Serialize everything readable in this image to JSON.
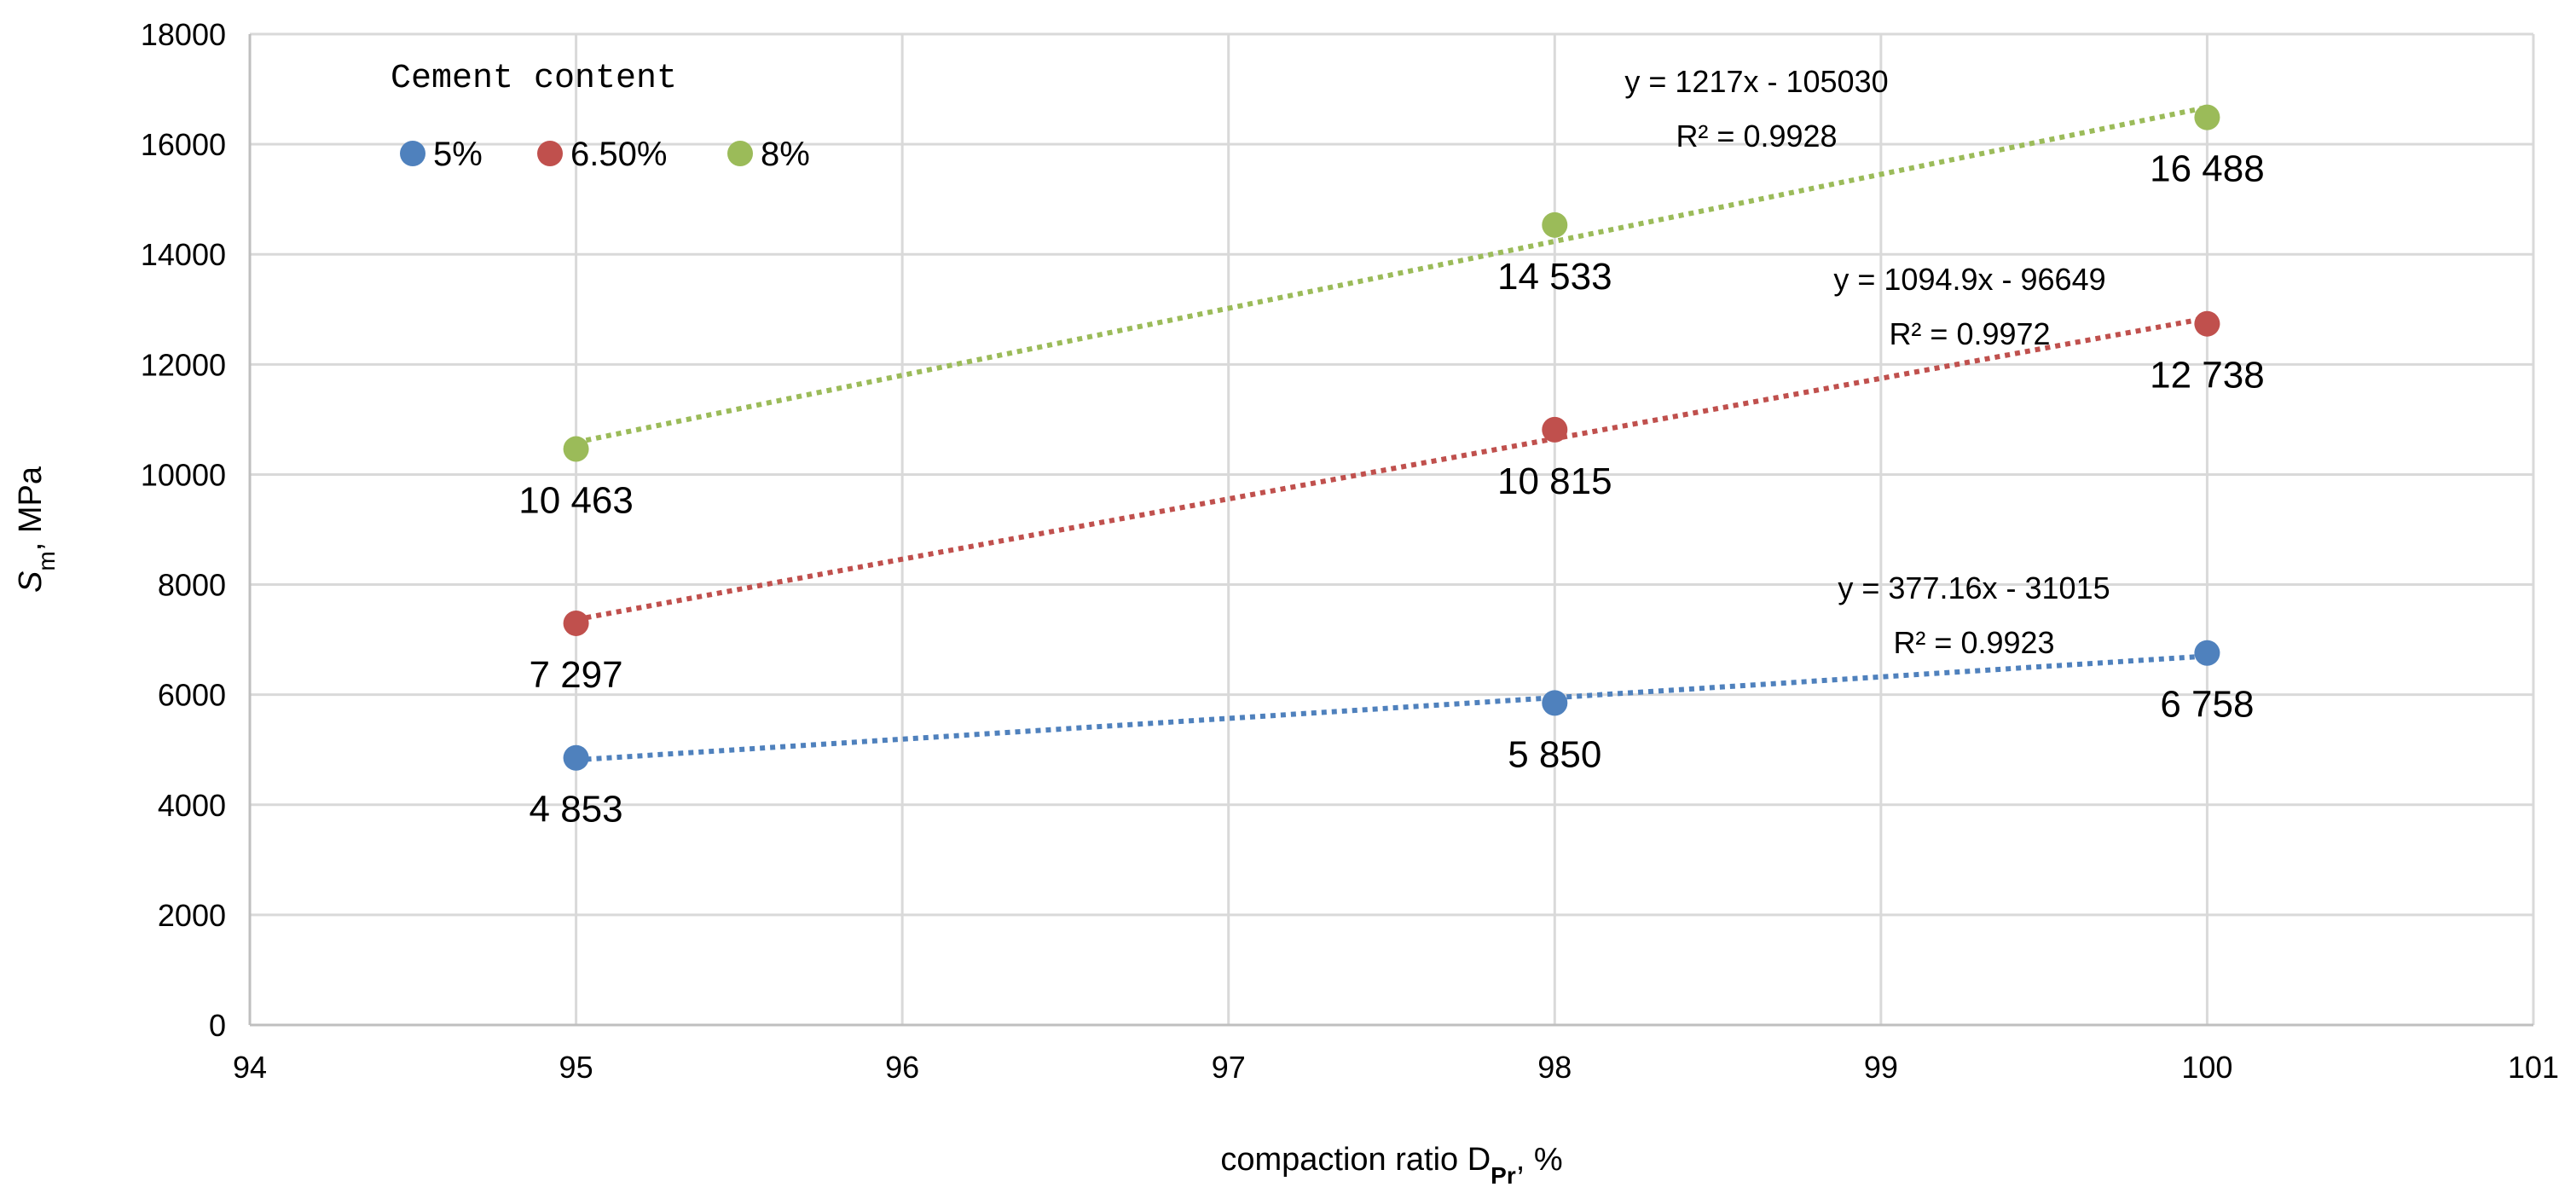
{
  "chart_data": {
    "type": "scatter",
    "xlabel": "compaction ratio D",
    "xlabel_sub": "Pr",
    "xlabel_suffix": ", %",
    "ylabel": "S",
    "ylabel_sub": "m",
    "ylabel_suffix": ", MPa",
    "xlim": [
      94,
      101
    ],
    "ylim": [
      0,
      18000
    ],
    "xticks": [
      94,
      95,
      96,
      97,
      98,
      99,
      100,
      101
    ],
    "yticks": [
      0,
      2000,
      4000,
      6000,
      8000,
      10000,
      12000,
      14000,
      16000,
      18000
    ],
    "xgrid": true,
    "ygrid": true,
    "legend": {
      "title": "Cement content",
      "position": "top-left"
    },
    "series": [
      {
        "name": "5%",
        "color": "#4f81bd",
        "x": [
          95,
          98,
          100
        ],
        "y": [
          4853,
          5850,
          6758
        ],
        "labels": [
          "4 853",
          "5 850",
          "6 758"
        ],
        "trendline": {
          "slope": 377.16,
          "intercept": -31015
        },
        "equation": "y = 377.16x - 31015",
        "r2": "R² = 0.9923"
      },
      {
        "name": "6.50%",
        "color": "#c0504d",
        "x": [
          95,
          98,
          100
        ],
        "y": [
          7297,
          10815,
          12738
        ],
        "labels": [
          "7 297",
          "10 815",
          "12 738"
        ],
        "trendline": {
          "slope": 1094.9,
          "intercept": -96649
        },
        "equation": "y = 1094.9x - 96649",
        "r2": "R² = 0.9972"
      },
      {
        "name": "8%",
        "color": "#9bbb59",
        "x": [
          95,
          98,
          100
        ],
        "y": [
          10463,
          14533,
          16488
        ],
        "labels": [
          "10 463",
          "14 533",
          "16 488"
        ],
        "trendline": {
          "slope": 1217,
          "intercept": -105030
        },
        "equation": "y = 1217x - 105030",
        "r2": "R² = 0.9928"
      }
    ]
  }
}
